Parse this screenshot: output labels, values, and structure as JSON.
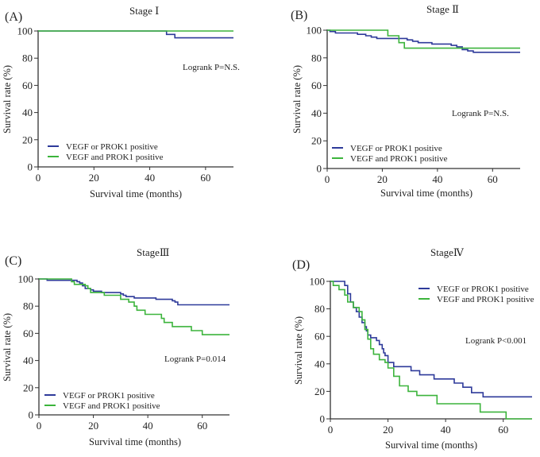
{
  "colors": {
    "series_or": "#2e3a9a",
    "series_and": "#3cb43c",
    "axis": "#333333"
  },
  "chart_data": [
    {
      "type": "line",
      "panel_label": "(A)",
      "title": "Stage Ⅰ",
      "xlabel": "Survival  time  (months)",
      "ylabel": "Survival  rate (%)",
      "xlim": [
        0,
        70
      ],
      "ylim": [
        0,
        100
      ],
      "xticks": [
        0,
        20,
        40,
        60
      ],
      "yticks": [
        0,
        20,
        40,
        60,
        80,
        100
      ],
      "annotation": "Logrank  P=N.S.",
      "legend": [
        "VEGF  or PROK1  positive",
        "VEGF  and PROK1  positive"
      ],
      "legend_position": "bottom-left",
      "series": [
        {
          "name": "VEGF or PROK1 positive",
          "step": [
            [
              0,
              100
            ],
            [
              46,
              100
            ],
            [
              46,
              97.5
            ],
            [
              49,
              97.5
            ],
            [
              49,
              95
            ],
            [
              70,
              95
            ]
          ]
        },
        {
          "name": "VEGF and PROK1 positive",
          "step": [
            [
              0,
              100
            ],
            [
              70,
              100
            ]
          ]
        }
      ]
    },
    {
      "type": "line",
      "panel_label": "(B)",
      "title": "Stage Ⅱ",
      "xlabel": "Survival  time  (months)",
      "ylabel": "Survival  rate  (%)",
      "xlim": [
        0,
        70
      ],
      "ylim": [
        0,
        100
      ],
      "xticks": [
        0,
        20,
        40,
        60
      ],
      "yticks": [
        0,
        20,
        40,
        60,
        80,
        100
      ],
      "annotation": "Logrank  P=N.S.",
      "legend": [
        "VEGF  or PROK1  positive",
        "VEGF  and PROK1  positive"
      ],
      "legend_position": "bottom-left",
      "series": [
        {
          "name": "VEGF or PROK1 positive",
          "step": [
            [
              0,
              100
            ],
            [
              1,
              99
            ],
            [
              3,
              98
            ],
            [
              11,
              97
            ],
            [
              14,
              96
            ],
            [
              16,
              95
            ],
            [
              18,
              94
            ],
            [
              29,
              93
            ],
            [
              31,
              92
            ],
            [
              33,
              91
            ],
            [
              38,
              90
            ],
            [
              45,
              89
            ],
            [
              47,
              88
            ],
            [
              49,
              86
            ],
            [
              51,
              85
            ],
            [
              53,
              84
            ],
            [
              70,
              84
            ]
          ]
        },
        {
          "name": "VEGF and PROK1 positive",
          "step": [
            [
              0,
              100
            ],
            [
              22,
              100
            ],
            [
              22,
              96
            ],
            [
              26,
              96
            ],
            [
              26,
              91
            ],
            [
              28,
              91
            ],
            [
              28,
              87
            ],
            [
              70,
              87
            ]
          ]
        }
      ]
    },
    {
      "type": "line",
      "panel_label": "(C)",
      "title": "StageⅢ",
      "xlabel": "Survival  time  (months)",
      "ylabel": "Survival  rate (%)",
      "xlim": [
        0,
        70
      ],
      "ylim": [
        0,
        100
      ],
      "xticks": [
        0,
        20,
        40,
        60
      ],
      "yticks": [
        0,
        20,
        40,
        60,
        80,
        100
      ],
      "annotation": "Logrank  P=0.014",
      "legend": [
        "VEGF  or PROK1  positive",
        "VEGF  and PROK1  positive"
      ],
      "legend_position": "bottom-left",
      "series": [
        {
          "name": "VEGF or PROK1 positive",
          "step": [
            [
              0,
              100
            ],
            [
              3,
              99
            ],
            [
              13,
              99
            ],
            [
              14,
              98
            ],
            [
              15,
              97
            ],
            [
              16,
              95
            ],
            [
              17,
              93
            ],
            [
              19,
              92
            ],
            [
              20,
              91
            ],
            [
              23,
              90
            ],
            [
              29,
              90
            ],
            [
              30,
              89
            ],
            [
              31,
              88
            ],
            [
              32,
              87
            ],
            [
              35,
              86
            ],
            [
              43,
              85
            ],
            [
              49,
              84
            ],
            [
              50,
              83
            ],
            [
              51,
              81
            ],
            [
              70,
              81
            ]
          ]
        },
        {
          "name": "VEGF and PROK1 positive",
          "step": [
            [
              0,
              100
            ],
            [
              11,
              100
            ],
            [
              12,
              98
            ],
            [
              13,
              96
            ],
            [
              17,
              95
            ],
            [
              18,
              93
            ],
            [
              19,
              90
            ],
            [
              24,
              88
            ],
            [
              30,
              85
            ],
            [
              33,
              83
            ],
            [
              35,
              80
            ],
            [
              36,
              77
            ],
            [
              39,
              74
            ],
            [
              45,
              71
            ],
            [
              46,
              68
            ],
            [
              49,
              65
            ],
            [
              56,
              62
            ],
            [
              60,
              59
            ],
            [
              70,
              59
            ]
          ]
        }
      ]
    },
    {
      "type": "line",
      "panel_label": "(D)",
      "title": "StageⅣ",
      "xlabel": "Survival  time  (months)",
      "ylabel": "Survival  rate  (%)",
      "xlim": [
        0,
        70
      ],
      "ylim": [
        0,
        100
      ],
      "xticks": [
        0,
        20,
        40,
        60
      ],
      "yticks": [
        0,
        20,
        40,
        60,
        80,
        100
      ],
      "annotation": "Logrank  P<0.001",
      "legend": [
        "VEGF  or PROK1  positive",
        "VEGF  and PROK1  positive"
      ],
      "legend_position": "top-right",
      "series": [
        {
          "name": "VEGF or PROK1 positive",
          "step": [
            [
              0,
              100
            ],
            [
              4,
              100
            ],
            [
              5,
              97
            ],
            [
              6,
              91
            ],
            [
              7,
              85
            ],
            [
              8,
              81
            ],
            [
              9,
              78
            ],
            [
              10,
              74
            ],
            [
              11,
              70
            ],
            [
              12,
              67
            ],
            [
              12.5,
              64
            ],
            [
              13,
              61
            ],
            [
              14,
              59
            ],
            [
              16,
              57
            ],
            [
              17,
              54
            ],
            [
              18,
              51
            ],
            [
              18.5,
              48
            ],
            [
              19,
              46
            ],
            [
              20,
              41
            ],
            [
              22,
              38
            ],
            [
              28,
              35
            ],
            [
              31,
              32
            ],
            [
              36,
              29
            ],
            [
              43,
              26
            ],
            [
              46,
              23
            ],
            [
              49,
              19
            ],
            [
              53,
              16
            ],
            [
              70,
              16
            ]
          ]
        },
        {
          "name": "VEGF and PROK1 positive",
          "step": [
            [
              0,
              100
            ],
            [
              1,
              97
            ],
            [
              3,
              94
            ],
            [
              5,
              90
            ],
            [
              6,
              85
            ],
            [
              8,
              81
            ],
            [
              10,
              78
            ],
            [
              11,
              72
            ],
            [
              12,
              65
            ],
            [
              13,
              58
            ],
            [
              14,
              51
            ],
            [
              15,
              47
            ],
            [
              17,
              43
            ],
            [
              19,
              41
            ],
            [
              20,
              37
            ],
            [
              22,
              31
            ],
            [
              24,
              24
            ],
            [
              27,
              20
            ],
            [
              30,
              17
            ],
            [
              37,
              11
            ],
            [
              52,
              5
            ],
            [
              61,
              0
            ],
            [
              70,
              0
            ]
          ]
        }
      ]
    }
  ]
}
